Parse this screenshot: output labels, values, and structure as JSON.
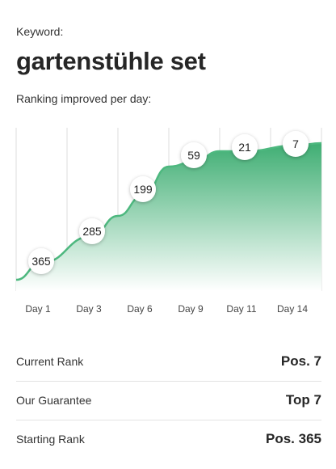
{
  "header": {
    "keyword_label": "Keyword:",
    "keyword": "gartenstühle set",
    "subtitle": "Ranking improved per day:"
  },
  "chart_data": {
    "type": "area",
    "title": "",
    "xlabel": "",
    "ylabel": "",
    "y_inverted": true,
    "ylim": [
      400,
      1
    ],
    "grid": "vertical",
    "x_tick_labels": [
      "Day 1",
      "Day 3",
      "Day 6",
      "Day 9",
      "Day 11",
      "Day 14"
    ],
    "series": [
      {
        "points": [
          {
            "x": "Day 1",
            "rank": 365
          },
          {
            "x": "Day 3",
            "rank": 285
          },
          {
            "x": "Day 6",
            "rank": 199
          },
          {
            "x": "Day 9",
            "rank": 59
          },
          {
            "x": "Day 11",
            "rank": 21
          },
          {
            "x": "Day 14",
            "rank": 7
          }
        ]
      }
    ],
    "colors": {
      "line": "#4db87f",
      "fill_top": "#3fae73",
      "fill_bottom": "#ffffff",
      "grid": "#dcdcdc"
    }
  },
  "stats": [
    {
      "label": "Current Rank",
      "value": "Pos. 7"
    },
    {
      "label": "Our Guarantee",
      "value": "Top 7"
    },
    {
      "label": "Starting Rank",
      "value": "Pos. 365"
    }
  ]
}
